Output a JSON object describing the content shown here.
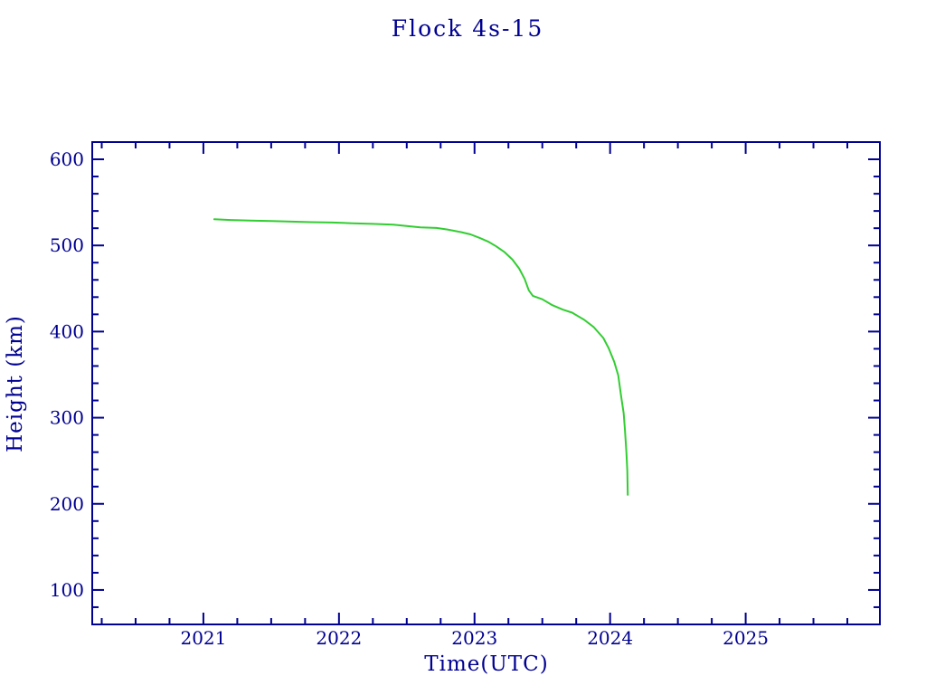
{
  "page": {
    "background": "#ffffff"
  },
  "chart_data": {
    "type": "line",
    "title": "Flock 4s-15",
    "xlabel": "Time(UTC)",
    "ylabel": "Height (km)",
    "xlim": [
      2020.18,
      2025.99
    ],
    "ylim": [
      60,
      620
    ],
    "x_major_ticks": [
      2021,
      2022,
      2023,
      2024,
      2025
    ],
    "x_minor_step": 0.25,
    "y_major_ticks": [
      100,
      200,
      300,
      400,
      500,
      600
    ],
    "y_minor_step": 20,
    "grid": false,
    "legend_position": "none",
    "axis_color": "#000091",
    "series": [
      {
        "name": "Flock 4s-15",
        "color": "#32cd32",
        "points": [
          [
            2021.08,
            530.5
          ],
          [
            2021.2,
            529.5
          ],
          [
            2021.35,
            528.8
          ],
          [
            2021.5,
            528.3
          ],
          [
            2021.65,
            527.6
          ],
          [
            2021.8,
            527.0
          ],
          [
            2021.95,
            526.6
          ],
          [
            2022.1,
            525.8
          ],
          [
            2022.25,
            525.0
          ],
          [
            2022.4,
            524.2
          ],
          [
            2022.5,
            522.5
          ],
          [
            2022.6,
            521.0
          ],
          [
            2022.72,
            520.3
          ],
          [
            2022.8,
            518.5
          ],
          [
            2022.9,
            515.5
          ],
          [
            2022.97,
            512.8
          ],
          [
            2023.04,
            508.5
          ],
          [
            2023.1,
            504.5
          ],
          [
            2023.16,
            499.0
          ],
          [
            2023.22,
            492.5
          ],
          [
            2023.28,
            483.5
          ],
          [
            2023.33,
            473.0
          ],
          [
            2023.37,
            461.0
          ],
          [
            2023.4,
            448.0
          ],
          [
            2023.43,
            441.5
          ],
          [
            2023.5,
            437.5
          ],
          [
            2023.57,
            431.0
          ],
          [
            2023.65,
            425.5
          ],
          [
            2023.72,
            422.0
          ],
          [
            2023.81,
            413.5
          ],
          [
            2023.88,
            405.0
          ],
          [
            2023.95,
            392.5
          ],
          [
            2023.99,
            380.5
          ],
          [
            2024.03,
            365.0
          ],
          [
            2024.06,
            349.0
          ],
          [
            2024.08,
            326.0
          ],
          [
            2024.1,
            305.0
          ],
          [
            2024.11,
            284.0
          ],
          [
            2024.12,
            259.5
          ],
          [
            2024.127,
            238.5
          ],
          [
            2024.13,
            210.5
          ]
        ]
      }
    ]
  }
}
